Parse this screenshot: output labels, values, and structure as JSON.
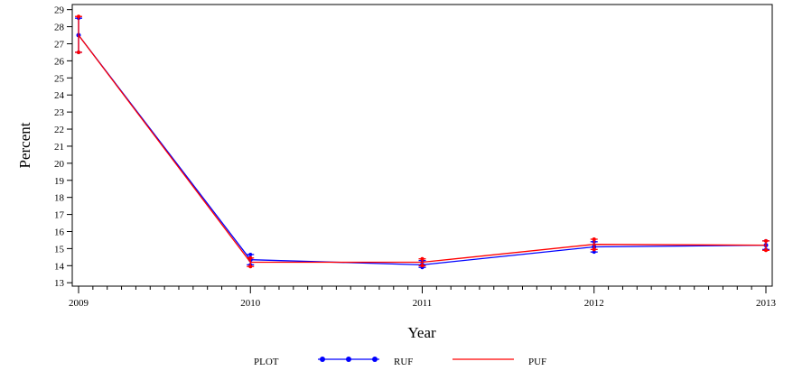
{
  "chart_data": {
    "type": "line",
    "xlabel": "Year",
    "ylabel": "Percent",
    "x": [
      2009,
      2010,
      2011,
      2012,
      2013
    ],
    "xlim": [
      2009,
      2013
    ],
    "ylim": [
      12.8,
      29.3
    ],
    "yticks": [
      13,
      14,
      15,
      16,
      17,
      18,
      19,
      20,
      21,
      22,
      23,
      24,
      25,
      26,
      27,
      28,
      29
    ],
    "series": [
      {
        "name": "RUF",
        "color": "#0000ff",
        "marker": "dot",
        "values": [
          27.5,
          14.35,
          14.05,
          15.1,
          15.2
        ],
        "lower": [
          26.5,
          14.05,
          13.9,
          14.8,
          14.95
        ],
        "upper": [
          28.5,
          14.65,
          14.3,
          15.4,
          15.45
        ]
      },
      {
        "name": "PUF",
        "color": "#ff0000",
        "marker": "none",
        "values": [
          27.5,
          14.2,
          14.2,
          15.25,
          15.2
        ],
        "lower": [
          26.5,
          13.95,
          14.0,
          14.95,
          14.9
        ],
        "upper": [
          28.6,
          14.45,
          14.4,
          15.55,
          15.45
        ]
      }
    ],
    "legend": {
      "title": "PLOT",
      "placement": "bottom"
    },
    "grid": false
  }
}
